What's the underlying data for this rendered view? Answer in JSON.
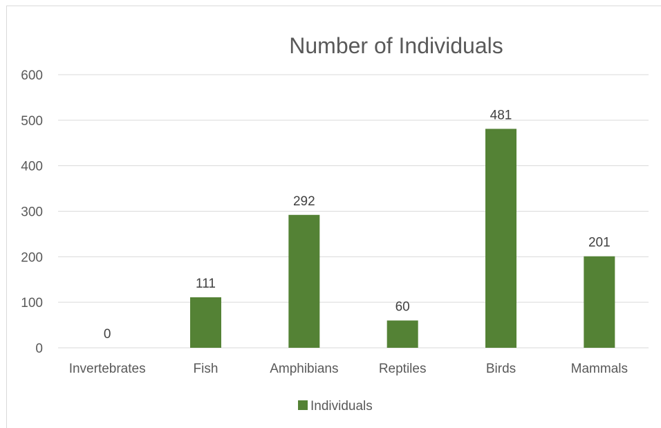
{
  "chart_data": {
    "type": "bar",
    "title": "Number of Individuals",
    "categories": [
      "Invertebrates",
      "Fish",
      "Amphibians",
      "Reptiles",
      "Birds",
      "Mammals"
    ],
    "series": [
      {
        "name": "Individuals",
        "values": [
          0,
          111,
          292,
          60,
          481,
          201
        ],
        "color": "#548235"
      }
    ],
    "ylim": [
      0,
      600
    ],
    "yticks": [
      0,
      100,
      200,
      300,
      400,
      500,
      600
    ],
    "grid": true,
    "data_labels": true,
    "legend_position": "bottom",
    "colors": {
      "bar": "#548235",
      "grid": "#d9d9d9",
      "text": "#595959"
    }
  }
}
